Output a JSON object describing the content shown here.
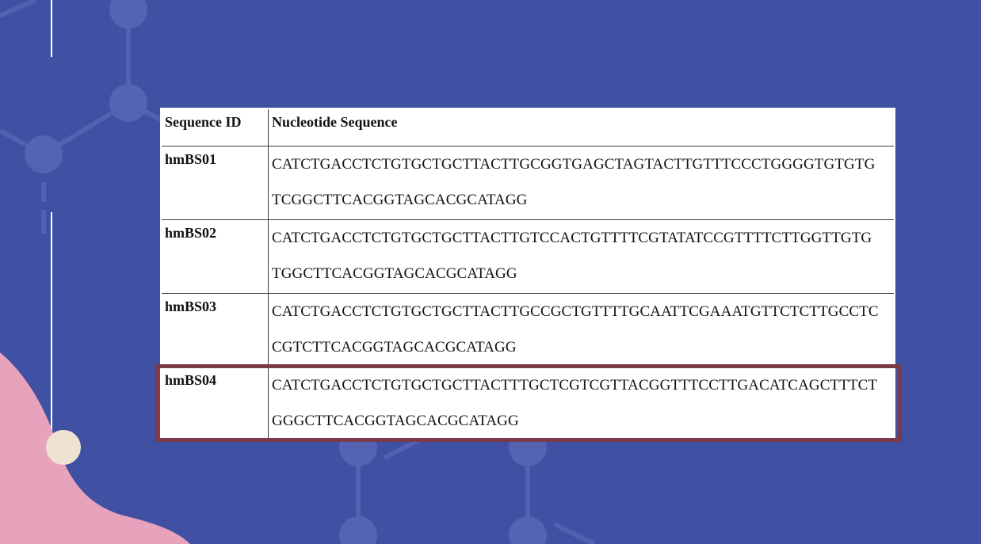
{
  "table": {
    "headers": [
      "Sequence ID",
      "Nucleotide Sequence"
    ],
    "rows": [
      {
        "id": "hmBS01",
        "line1": "CATCTGACCTCTGTGCTGCTTACTTGCGGTGAGCTAGTACTTGTTTCCCTGGGGTGTGTG",
        "line2": "TCGGCTTCACGGTAGCACGCATAGG"
      },
      {
        "id": "hmBS02",
        "line1": "CATCTGACCTCTGTGCTGCTTACTTGTCCACTGTTTTCGTATATCCGTTTTCTTGGTTGTG",
        "line2": "TGGCTTCACGGTAGCACGCATAGG"
      },
      {
        "id": "hmBS03",
        "line1": "CATCTGACCTCTGTGCTGCTTACTTGCCGCTGTTTTGCAATTCGAAATGTTCTCTTGCCTC",
        "line2": "CGTCTTCACGGTAGCACGCATAGG"
      },
      {
        "id": "hmBS04",
        "line1": "CATCTGACCTCTGTGCTGCTTACTTTGCTCGTCGTTACGGTTTCCTTGACATCAGCTTTCT",
        "line2": "GGGCTTCACGGTAGCACGCATAGG"
      }
    ]
  },
  "colors": {
    "background": "#4050a3",
    "highlight": "#7a3a48",
    "blob": "#e8a3bc",
    "dot": "#efe2d2"
  }
}
